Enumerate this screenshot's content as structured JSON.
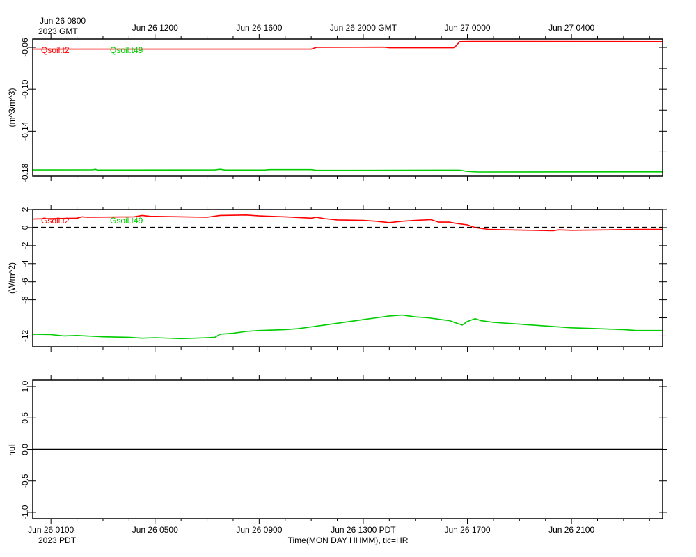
{
  "chart_data": {
    "type": "line",
    "top_axis": {
      "timezone_note": "2023 GMT",
      "first_label": "Jun 26 0800",
      "labels": [
        "Jun 26 1200",
        "Jun 26 1600",
        "Jun 26 2000 GMT",
        "Jun 27 0000",
        "Jun 27 0400"
      ]
    },
    "bottom_axis": {
      "timezone_note": "2023 PDT",
      "labels": [
        "Jun 26 0100",
        "Jun 26 0500",
        "Jun 26 0900",
        "Jun 26 1300 PDT",
        "Jun 26 1700",
        "Jun 26 2100"
      ],
      "xlabel": "Time(MON DAY HHMM), tic=HR"
    },
    "xlim_hours": [
      -0.7,
      23.5
    ],
    "label_hours": [
      0,
      4,
      8,
      12,
      16,
      20
    ],
    "panels": [
      {
        "ylabel": "(m^3/m^3)",
        "ylim": [
          -0.183,
          -0.052
        ],
        "yticks": [
          -0.06,
          -0.1,
          -0.14,
          -0.18
        ],
        "ytick_labels": [
          "-0.06",
          "-0.10",
          "-0.14",
          "-0.18"
        ],
        "minor_step": 0.02,
        "zero_line": false,
        "series": [
          {
            "name": "Qsoil.t2",
            "color": "#ff0000",
            "points": [
              [
                -0.7,
                -0.0617
              ],
              [
                10.0,
                -0.0617
              ],
              [
                10.2,
                -0.06
              ],
              [
                12.8,
                -0.0598
              ],
              [
                13.0,
                -0.0604
              ],
              [
                15.5,
                -0.0604
              ],
              [
                15.7,
                -0.0545
              ],
              [
                16.2,
                -0.0543
              ],
              [
                23.5,
                -0.0545
              ]
            ]
          },
          {
            "name": "Qsoil.t49",
            "color": "#00cc00",
            "points": [
              [
                -0.7,
                -0.1771
              ],
              [
                1.6,
                -0.177
              ],
              [
                1.7,
                -0.1765
              ],
              [
                1.8,
                -0.1772
              ],
              [
                6.3,
                -0.1771
              ],
              [
                6.5,
                -0.1765
              ],
              [
                6.7,
                -0.1772
              ],
              [
                8.2,
                -0.1772
              ],
              [
                8.4,
                -0.1768
              ],
              [
                10.0,
                -0.1768
              ],
              [
                10.2,
                -0.1775
              ],
              [
                15.7,
                -0.1773
              ],
              [
                16.0,
                -0.1785
              ],
              [
                16.4,
                -0.179
              ],
              [
                23.5,
                -0.1789
              ]
            ]
          }
        ]
      },
      {
        "ylabel": "(W/m^2)",
        "ylim": [
          -13.2,
          2.0
        ],
        "yticks": [
          2,
          0,
          -2,
          -4,
          -6,
          -8,
          -12
        ],
        "ytick_labels": [
          "2",
          "0",
          "-2",
          "-4",
          "-6",
          "-8",
          "-12"
        ],
        "minor_step": 2,
        "zero_line": true,
        "series": [
          {
            "name": "Gsoil.t2",
            "color": "#ff0000",
            "points": [
              [
                -0.7,
                0.95
              ],
              [
                1.0,
                1.05
              ],
              [
                1.2,
                1.2
              ],
              [
                1.4,
                1.15
              ],
              [
                3.2,
                1.2
              ],
              [
                3.5,
                1.35
              ],
              [
                3.8,
                1.25
              ],
              [
                6.0,
                1.15
              ],
              [
                6.5,
                1.35
              ],
              [
                7.5,
                1.4
              ],
              [
                8.0,
                1.3
              ],
              [
                9.0,
                1.2
              ],
              [
                10.0,
                1.05
              ],
              [
                10.2,
                1.15
              ],
              [
                10.5,
                1.0
              ],
              [
                11.0,
                0.85
              ],
              [
                12.0,
                0.8
              ],
              [
                12.5,
                0.7
              ],
              [
                13.0,
                0.55
              ],
              [
                13.5,
                0.7
              ],
              [
                14.0,
                0.8
              ],
              [
                14.6,
                0.88
              ],
              [
                14.9,
                0.6
              ],
              [
                15.3,
                0.6
              ],
              [
                15.6,
                0.45
              ],
              [
                16.0,
                0.3
              ],
              [
                16.3,
                0.0
              ],
              [
                16.8,
                -0.2
              ],
              [
                17.5,
                -0.25
              ],
              [
                18.5,
                -0.3
              ],
              [
                19.3,
                -0.35
              ],
              [
                19.5,
                -0.25
              ],
              [
                20.0,
                -0.3
              ],
              [
                21.5,
                -0.25
              ],
              [
                22.5,
                -0.2
              ],
              [
                23.5,
                -0.2
              ]
            ]
          },
          {
            "name": "Gsoil.t49",
            "color": "#00cc00",
            "points": [
              [
                -0.7,
                -11.8
              ],
              [
                0.0,
                -11.85
              ],
              [
                0.5,
                -12.0
              ],
              [
                1.0,
                -11.95
              ],
              [
                2.0,
                -12.1
              ],
              [
                3.0,
                -12.15
              ],
              [
                3.5,
                -12.25
              ],
              [
                4.0,
                -12.2
              ],
              [
                5.0,
                -12.3
              ],
              [
                5.5,
                -12.25
              ],
              [
                6.0,
                -12.2
              ],
              [
                6.3,
                -12.15
              ],
              [
                6.5,
                -11.8
              ],
              [
                7.0,
                -11.7
              ],
              [
                7.5,
                -11.5
              ],
              [
                8.0,
                -11.4
              ],
              [
                9.0,
                -11.3
              ],
              [
                9.5,
                -11.2
              ],
              [
                10.0,
                -11.0
              ],
              [
                10.5,
                -10.8
              ],
              [
                11.0,
                -10.6
              ],
              [
                11.5,
                -10.4
              ],
              [
                12.0,
                -10.2
              ],
              [
                12.5,
                -10.0
              ],
              [
                13.0,
                -9.8
              ],
              [
                13.5,
                -9.7
              ],
              [
                14.0,
                -9.9
              ],
              [
                14.5,
                -10.0
              ],
              [
                15.0,
                -10.2
              ],
              [
                15.3,
                -10.3
              ],
              [
                15.5,
                -10.5
              ],
              [
                15.8,
                -10.8
              ],
              [
                16.0,
                -10.4
              ],
              [
                16.3,
                -10.1
              ],
              [
                16.5,
                -10.3
              ],
              [
                17.0,
                -10.5
              ],
              [
                18.0,
                -10.7
              ],
              [
                19.0,
                -10.9
              ],
              [
                20.0,
                -11.1
              ],
              [
                21.0,
                -11.2
              ],
              [
                22.0,
                -11.3
              ],
              [
                22.5,
                -11.4
              ],
              [
                23.5,
                -11.4
              ]
            ]
          }
        ]
      },
      {
        "ylabel": "null",
        "ylim": [
          -1.1,
          1.1
        ],
        "yticks": [
          1.0,
          0.5,
          0.0,
          -0.5,
          -1.0
        ],
        "ytick_labels": [
          "1.0",
          "0.5",
          "0.0",
          "-0.5",
          "-1.0"
        ],
        "minor_step": 0.5,
        "zero_line": false,
        "solid_zero": true,
        "series": []
      }
    ]
  }
}
